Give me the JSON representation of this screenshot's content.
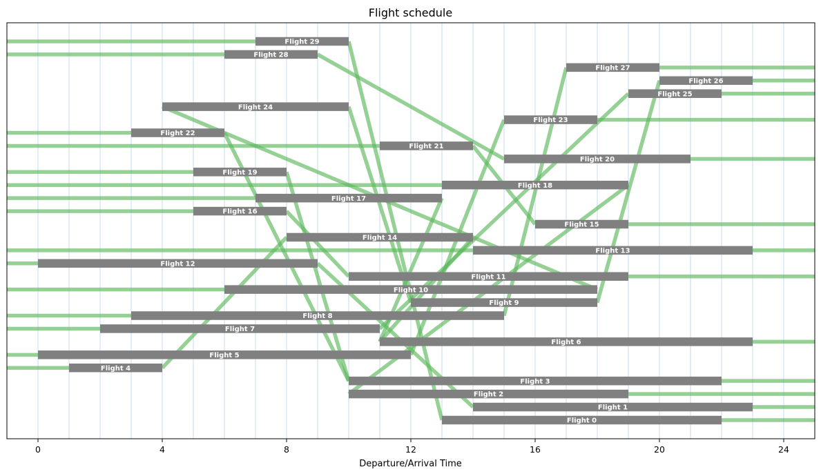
{
  "chart_data": {
    "type": "bar",
    "title": "Flight schedule",
    "xlabel": "Departure/Arrival Time",
    "ylabel": "",
    "xlim": [
      -1,
      25
    ],
    "xticks": [
      0,
      4,
      8,
      12,
      16,
      20,
      24
    ],
    "xtick_labels": [
      "0",
      "4",
      "8",
      "12",
      "16",
      "20",
      "24"
    ],
    "hour_gridlines": true,
    "colors": {
      "bar": "#808080",
      "connection": "#5cb85c",
      "grid": "#c6dbef"
    },
    "flights": [
      {
        "label": "Flight 0",
        "row": 0,
        "start": 13,
        "end": 22
      },
      {
        "label": "Flight 1",
        "row": 1,
        "start": 14,
        "end": 23
      },
      {
        "label": "Flight 2",
        "row": 2,
        "start": 10,
        "end": 19
      },
      {
        "label": "Flight 3",
        "row": 3,
        "start": 10,
        "end": 22
      },
      {
        "label": "Flight 4",
        "row": 4,
        "start": 1,
        "end": 4
      },
      {
        "label": "Flight 5",
        "row": 5,
        "start": 0,
        "end": 12
      },
      {
        "label": "Flight 6",
        "row": 6,
        "start": 11,
        "end": 23
      },
      {
        "label": "Flight 7",
        "row": 7,
        "start": 2,
        "end": 11
      },
      {
        "label": "Flight 8",
        "row": 8,
        "start": 3,
        "end": 15
      },
      {
        "label": "Flight 9",
        "row": 9,
        "start": 12,
        "end": 18
      },
      {
        "label": "Flight 10",
        "row": 10,
        "start": 6,
        "end": 18
      },
      {
        "label": "Flight 11",
        "row": 11,
        "start": 10,
        "end": 19
      },
      {
        "label": "Flight 12",
        "row": 12,
        "start": 0,
        "end": 9
      },
      {
        "label": "Flight 13",
        "row": 13,
        "start": 14,
        "end": 23
      },
      {
        "label": "Flight 14",
        "row": 14,
        "start": 8,
        "end": 14
      },
      {
        "label": "Flight 15",
        "row": 15,
        "start": 16,
        "end": 19
      },
      {
        "label": "Flight 16",
        "row": 16,
        "start": 5,
        "end": 8
      },
      {
        "label": "Flight 17",
        "row": 17,
        "start": 7,
        "end": 13
      },
      {
        "label": "Flight 18",
        "row": 18,
        "start": 13,
        "end": 19
      },
      {
        "label": "Flight 19",
        "row": 19,
        "start": 5,
        "end": 8
      },
      {
        "label": "Flight 20",
        "row": 20,
        "start": 15,
        "end": 21
      },
      {
        "label": "Flight 21",
        "row": 21,
        "start": 11,
        "end": 14
      },
      {
        "label": "Flight 22",
        "row": 22,
        "start": 3,
        "end": 6
      },
      {
        "label": "Flight 23",
        "row": 23,
        "start": 15,
        "end": 18
      },
      {
        "label": "Flight 24",
        "row": 24,
        "start": 4,
        "end": 10
      },
      {
        "label": "Flight 25",
        "row": 25,
        "start": 19,
        "end": 22
      },
      {
        "label": "Flight 26",
        "row": 26,
        "start": 20,
        "end": 23
      },
      {
        "label": "Flight 27",
        "row": 27,
        "start": 17,
        "end": 20
      },
      {
        "label": "Flight 28",
        "row": 28,
        "start": 6,
        "end": 9
      },
      {
        "label": "Flight 29",
        "row": 29,
        "start": 7,
        "end": 10
      }
    ],
    "connections": [
      {
        "from": "Flight 4",
        "to": "Flight 14"
      },
      {
        "from": "Flight 5",
        "to": "Flight 23"
      },
      {
        "from": "Flight 7",
        "to": "Flight 25"
      },
      {
        "from": "Flight 8",
        "to": "Flight 27"
      },
      {
        "from": "Flight 9",
        "to": "Flight 26"
      },
      {
        "from": "Flight 10",
        "to": "Flight 24"
      },
      {
        "from": "Flight 12",
        "to": "Flight 1"
      },
      {
        "from": "Flight 14",
        "to": "Flight 6"
      },
      {
        "from": "Flight 16",
        "to": "Flight 11"
      },
      {
        "from": "Flight 17",
        "to": "Flight 6"
      },
      {
        "from": "Flight 18",
        "to": "Flight 2"
      },
      {
        "from": "Flight 19",
        "to": "Flight 3"
      },
      {
        "from": "Flight 21",
        "to": "Flight 15"
      },
      {
        "from": "Flight 22",
        "to": "Flight 3"
      },
      {
        "from": "Flight 24",
        "to": "Flight 9"
      },
      {
        "from": "Flight 28",
        "to": "Flight 20"
      },
      {
        "from": "Flight 29",
        "to": "Flight 0"
      }
    ]
  }
}
